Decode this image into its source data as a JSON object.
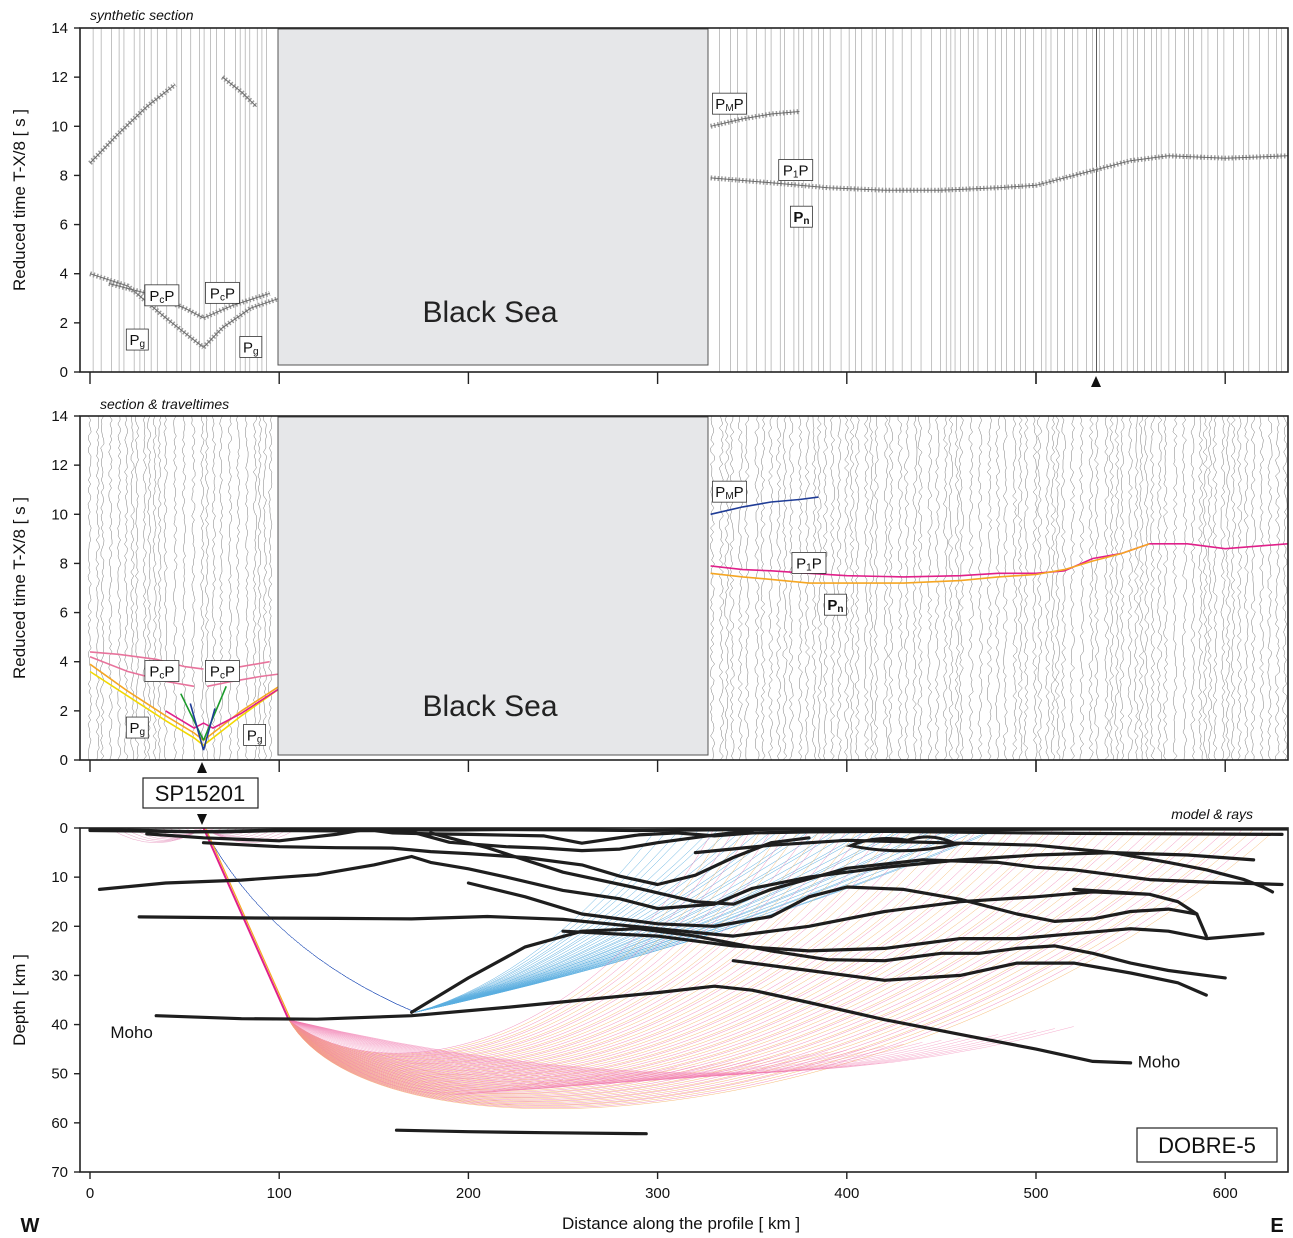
{
  "figure": {
    "direction_west": "W",
    "direction_east": "E",
    "profile_name": "DOBRE-5",
    "shot_point": "SP15201",
    "sea_label": "Black Sea",
    "moho_label": "Moho",
    "colors": {
      "frame": "#222222",
      "sea_fill": "#e6e7e9",
      "trace": "#8a8a8a",
      "pmp": "#1f3c96",
      "p1p": "#e0208a",
      "pn": "#f5a623",
      "pg": "#f2d800",
      "pcp": "#e8739c",
      "green": "#1a9a2a",
      "blue_rays": "#5aaee0",
      "pink_rays": "#f07ab0",
      "orange_rays": "#f5b060",
      "interface": "#1e1e1e"
    }
  },
  "chart_data": [
    {
      "type": "line",
      "panel": "synthetic",
      "title": "synthetic section",
      "ylabel": "Reduced  time  T-X/8   [ s ]",
      "ylim": [
        0,
        14
      ],
      "yticks": [
        "0",
        "2",
        "4",
        "6",
        "8",
        "10",
        "12",
        "14"
      ],
      "xlim": [
        -5,
        633
      ],
      "gap_km": [
        100,
        328
      ],
      "phase_labels": [
        {
          "main": "P",
          "sub": "c",
          "tail": "P",
          "x": 38,
          "y": 3.1
        },
        {
          "main": "P",
          "sub": "c",
          "tail": "P",
          "x": 70,
          "y": 3.2
        },
        {
          "main": "P",
          "sub": "g",
          "tail": "",
          "x": 25,
          "y": 1.3
        },
        {
          "main": "P",
          "sub": "g",
          "tail": "",
          "x": 85,
          "y": 1.0
        },
        {
          "main": "P",
          "sub": "M",
          "tail": "P",
          "x": 338,
          "y": 10.9
        },
        {
          "main": "P",
          "sub": "1",
          "tail": "P",
          "x": 373,
          "y": 8.2
        },
        {
          "main": "P",
          "sub": "n",
          "tail": "",
          "x": 376,
          "y": 6.3,
          "bold": true
        }
      ],
      "marker_km": 532,
      "series": [
        {
          "role": "pg_w",
          "x": [
            0,
            20,
            40,
            55,
            60
          ],
          "y": [
            4.0,
            3.5,
            2.2,
            1.3,
            1.0
          ]
        },
        {
          "role": "pg_e",
          "x": [
            60,
            70,
            85,
            100
          ],
          "y": [
            1.0,
            1.8,
            2.6,
            3.0
          ]
        },
        {
          "role": "pcp_w",
          "x": [
            10,
            30,
            50,
            60
          ],
          "y": [
            3.6,
            3.2,
            2.6,
            2.2
          ]
        },
        {
          "role": "pcp_e",
          "x": [
            60,
            75,
            95
          ],
          "y": [
            2.2,
            2.7,
            3.2
          ]
        },
        {
          "role": "early_w",
          "x": [
            0,
            15,
            30,
            45
          ],
          "y": [
            8.5,
            9.7,
            10.8,
            11.7
          ]
        },
        {
          "role": "early_e",
          "x": [
            70,
            80,
            88
          ],
          "y": [
            12.0,
            11.4,
            10.8
          ]
        },
        {
          "role": "pmp",
          "x": [
            328,
            345,
            360,
            375
          ],
          "y": [
            10.0,
            10.3,
            10.5,
            10.6
          ]
        },
        {
          "role": "p1p",
          "x": [
            328,
            360,
            390,
            420,
            450,
            480,
            500,
            530,
            550,
            570,
            600,
            633
          ],
          "y": [
            7.9,
            7.7,
            7.5,
            7.4,
            7.4,
            7.5,
            7.6,
            8.2,
            8.6,
            8.8,
            8.7,
            8.8
          ]
        }
      ]
    },
    {
      "type": "line",
      "panel": "observed",
      "title": "section & traveltimes",
      "ylabel": "Reduced  time  T-X/8   [ s ]",
      "ylim": [
        0,
        14
      ],
      "yticks": [
        "0",
        "2",
        "4",
        "6",
        "8",
        "10",
        "12",
        "14"
      ],
      "xlim": [
        -5,
        633
      ],
      "gap_km": [
        100,
        328
      ],
      "shot_km": 60,
      "phase_labels": [
        {
          "main": "P",
          "sub": "c",
          "tail": "P",
          "x": 38,
          "y": 3.6
        },
        {
          "main": "P",
          "sub": "c",
          "tail": "P",
          "x": 70,
          "y": 3.6
        },
        {
          "main": "P",
          "sub": "g",
          "tail": "",
          "x": 25,
          "y": 1.3
        },
        {
          "main": "P",
          "sub": "g",
          "tail": "",
          "x": 87,
          "y": 1.0
        },
        {
          "main": "P",
          "sub": "M",
          "tail": "P",
          "x": 338,
          "y": 10.9
        },
        {
          "main": "P",
          "sub": "1",
          "tail": "P",
          "x": 380,
          "y": 8.0
        },
        {
          "main": "P",
          "sub": "n",
          "tail": "",
          "x": 394,
          "y": 6.3,
          "bold": true
        }
      ],
      "series": [
        {
          "name": "",
          "role": "pg",
          "color": "#f2d800",
          "x": [
            0,
            20,
            40,
            55,
            60,
            65,
            80,
            100
          ],
          "y": [
            3.6,
            2.6,
            1.6,
            0.9,
            0.6,
            0.9,
            1.8,
            2.9
          ]
        },
        {
          "name": "",
          "role": "pg2",
          "color": "#f5a623",
          "x": [
            0,
            20,
            40,
            55,
            60,
            65,
            80,
            100
          ],
          "y": [
            3.9,
            2.8,
            1.8,
            1.1,
            0.8,
            1.1,
            2.0,
            3.0
          ]
        },
        {
          "name": "",
          "role": "p1",
          "color": "#e0208a",
          "x": [
            40,
            55,
            60,
            65,
            80,
            100
          ],
          "y": [
            2.0,
            1.3,
            1.5,
            1.3,
            1.9,
            2.9
          ]
        },
        {
          "name": "",
          "role": "pcp_w",
          "color": "#e8739c",
          "x": [
            0,
            15,
            35,
            50,
            60
          ],
          "y": [
            4.4,
            4.3,
            4.1,
            3.8,
            3.7
          ]
        },
        {
          "name": "",
          "role": "pcp_w2",
          "color": "#e8739c",
          "x": [
            0,
            20,
            40,
            55
          ],
          "y": [
            4.2,
            3.6,
            3.2,
            3.0
          ]
        },
        {
          "name": "",
          "role": "pcp_e",
          "color": "#e8739c",
          "x": [
            62,
            75,
            90,
            100
          ],
          "y": [
            3.0,
            3.2,
            3.4,
            3.5
          ]
        },
        {
          "name": "",
          "role": "pcp_e2",
          "color": "#e8739c",
          "x": [
            62,
            80,
            95
          ],
          "y": [
            3.6,
            3.8,
            4.0
          ]
        },
        {
          "name": "",
          "role": "green_w",
          "color": "#1a9a2a",
          "x": [
            48,
            60
          ],
          "y": [
            2.7,
            0.8
          ]
        },
        {
          "name": "",
          "role": "green_e",
          "color": "#1a9a2a",
          "x": [
            60,
            72
          ],
          "y": [
            0.8,
            3.0
          ]
        },
        {
          "name": "",
          "role": "blue_w",
          "color": "#1f3c96",
          "x": [
            53,
            60
          ],
          "y": [
            2.3,
            0.4
          ]
        },
        {
          "name": "",
          "role": "blue_e",
          "color": "#1f3c96",
          "x": [
            60,
            66
          ],
          "y": [
            0.4,
            2.1
          ]
        },
        {
          "name": "",
          "role": "pmp",
          "color": "#1f3c96",
          "x": [
            328,
            345,
            360,
            375,
            385
          ],
          "y": [
            10.0,
            10.3,
            10.5,
            10.6,
            10.7
          ]
        },
        {
          "name": "",
          "role": "p1p",
          "color": "#e0208a",
          "x": [
            328,
            345,
            360,
            380,
            400,
            430,
            460,
            480,
            500,
            515,
            530,
            545,
            560,
            580,
            600,
            633
          ],
          "y": [
            7.9,
            7.75,
            7.7,
            7.6,
            7.5,
            7.45,
            7.5,
            7.6,
            7.6,
            7.7,
            8.2,
            8.4,
            8.8,
            8.8,
            8.6,
            8.8
          ]
        },
        {
          "name": "",
          "role": "pn",
          "color": "#f5a623",
          "x": [
            328,
            345,
            360,
            380,
            400,
            430,
            460,
            480,
            500,
            515,
            530,
            545,
            560
          ],
          "y": [
            7.6,
            7.45,
            7.35,
            7.2,
            7.2,
            7.2,
            7.3,
            7.45,
            7.55,
            7.75,
            8.1,
            8.4,
            8.8
          ]
        }
      ]
    },
    {
      "type": "line",
      "panel": "model",
      "title": "model & rays",
      "xlabel": "Distance along the profile   [ km ]",
      "ylabel": "Depth   [ km ]",
      "xlim": [
        -5,
        633
      ],
      "ylim": [
        70,
        0
      ],
      "xticks": [
        "0",
        "100",
        "200",
        "300",
        "400",
        "500",
        "600"
      ],
      "yticks": [
        "0",
        "10",
        "20",
        "30",
        "40",
        "50",
        "60",
        "70"
      ],
      "shot_km": 60,
      "moho_labels": [
        {
          "x": 22,
          "y": 41.5
        },
        {
          "x": 565,
          "y": 47.5
        }
      ],
      "interfaces": [
        {
          "x": [
            0,
            30,
            55,
            80,
            100,
            140,
            160,
            170,
            190,
            220,
            260,
            290,
            320,
            350,
            380,
            400,
            420,
            450,
            480,
            520,
            560,
            600,
            633
          ],
          "y": [
            0.3,
            0.5,
            0.8,
            0.6,
            0.4,
            0.4,
            0.3,
            0.4,
            0.4,
            0.3,
            0.4,
            0.5,
            0.4,
            0.3,
            0.2,
            0.3,
            0.2,
            0.2,
            0.3,
            0.2,
            0.2,
            0.2,
            0.2
          ]
        },
        {
          "x": [
            0,
            40,
            70,
            100,
            130,
            150,
            160,
            180,
            200,
            240,
            260,
            290,
            310,
            330,
            350,
            380,
            420,
            470,
            520,
            580,
            630
          ],
          "y": [
            0.5,
            0.7,
            0.8,
            0.5,
            0.6,
            0.5,
            1.0,
            1.2,
            1.3,
            1.6,
            3.1,
            1.4,
            1.0,
            1.6,
            1.0,
            0.8,
            0.7,
            0.9,
            1.1,
            1.2,
            1.3
          ]
        },
        {
          "x": [
            30,
            60,
            100,
            130,
            150,
            170,
            190,
            220,
            240,
            260,
            280,
            300,
            330,
            350
          ],
          "y": [
            1.2,
            2.0,
            2.6,
            1.3,
            0.0,
            0.8,
            2.9,
            3.8,
            4.1,
            4.6,
            4.3,
            3.0,
            1.4,
            0.5
          ]
        },
        {
          "x": [
            60,
            100,
            130,
            160,
            180,
            200,
            230,
            260,
            280,
            300,
            320,
            340,
            360,
            380
          ],
          "y": [
            3.0,
            3.8,
            4.0,
            4.1,
            4.8,
            5.2,
            6.0,
            7.5,
            9.8,
            11.5,
            9.6,
            6.0,
            3.0,
            2.0
          ]
        },
        {
          "x": [
            5,
            40,
            80,
            120,
            150,
            170,
            180,
            200,
            220,
            250,
            280,
            300,
            330,
            350,
            380,
            420,
            460,
            500,
            540,
            580,
            615
          ],
          "y": [
            12.5,
            11.2,
            10.6,
            9.5,
            7.5,
            5.8,
            7.0,
            8.3,
            10.0,
            12.7,
            14.4,
            16.4,
            15.5,
            12.3,
            10.0,
            8.0,
            6.5,
            5.5,
            5.0,
            5.5,
            6.5
          ]
        },
        {
          "x": [
            180,
            210,
            250,
            290,
            320,
            340,
            360,
            400,
            440,
            480,
            500,
            520,
            540,
            560,
            590,
            630
          ],
          "y": [
            1.0,
            4.0,
            9.0,
            12.3,
            15.0,
            15.5,
            12.5,
            8.2,
            6.5,
            7.0,
            8.0,
            8.5,
            9.5,
            10.5,
            11.0,
            11.5
          ]
        },
        {
          "x": [
            320,
            360,
            400,
            450,
            500,
            540,
            570,
            590,
            600,
            610,
            620,
            625
          ],
          "y": [
            5.0,
            3.5,
            2.5,
            3.0,
            3.5,
            5.0,
            7.0,
            8.5,
            9.5,
            10.5,
            12.0,
            13.0
          ]
        },
        {
          "x": [
            200,
            230,
            260,
            300,
            330,
            360,
            380,
            400,
            430,
            460,
            490,
            510,
            530,
            550,
            570,
            585
          ],
          "y": [
            11.2,
            14.0,
            17.5,
            19.5,
            20.0,
            18.0,
            14.0,
            12.0,
            12.5,
            14.5,
            17.5,
            19.0,
            18.5,
            17.0,
            16.5,
            17.5
          ]
        },
        {
          "x": [
            26,
            80,
            130,
            170,
            210,
            250,
            300,
            340,
            380,
            420,
            460,
            500,
            530,
            560,
            575,
            585,
            590,
            585,
            575,
            560,
            540,
            520
          ],
          "y": [
            18.1,
            18.3,
            18.4,
            18.5,
            18.0,
            18.6,
            20.5,
            22.0,
            20.0,
            17.0,
            15.0,
            14.0,
            13.0,
            13.5,
            15.0,
            17.5,
            22.0,
            17.5,
            15.0,
            13.5,
            13.0,
            12.5
          ]
        },
        {
          "x": [
            250,
            300,
            340,
            380,
            420,
            460,
            490,
            520,
            550,
            570,
            590,
            620
          ],
          "y": [
            21.0,
            22.0,
            24.0,
            25.0,
            24.5,
            22.5,
            22.5,
            21.5,
            20.5,
            21.0,
            22.5,
            21.5
          ]
        },
        {
          "x": [
            170,
            200,
            230,
            260,
            290,
            320,
            360,
            390,
            420,
            450,
            470,
            490,
            510,
            530,
            550,
            570,
            600
          ],
          "y": [
            37.5,
            30.5,
            24.2,
            21.0,
            20.5,
            22.0,
            25.0,
            26.8,
            27.0,
            25.5,
            25.5,
            24.5,
            24.0,
            25.5,
            27.5,
            29.0,
            30.5
          ]
        },
        {
          "x": [
            340,
            380,
            420,
            460,
            490,
            520,
            550,
            575,
            590
          ],
          "y": [
            27.0,
            29.0,
            31.0,
            30.0,
            27.5,
            27.5,
            29.5,
            31.5,
            34.0
          ]
        },
        {
          "x": [
            35,
            80,
            120,
            170,
            220,
            260,
            300,
            330,
            350,
            380,
            420,
            460,
            500,
            530,
            550
          ],
          "y": [
            38.2,
            38.8,
            38.9,
            38.2,
            36.5,
            35.0,
            33.5,
            32.2,
            33.0,
            35.5,
            39.0,
            42.0,
            45.0,
            47.5,
            47.8
          ]
        },
        {
          "x": [
            162,
            200,
            240,
            294
          ],
          "y": [
            61.5,
            61.8,
            62.0,
            62.2
          ]
        }
      ]
    }
  ]
}
